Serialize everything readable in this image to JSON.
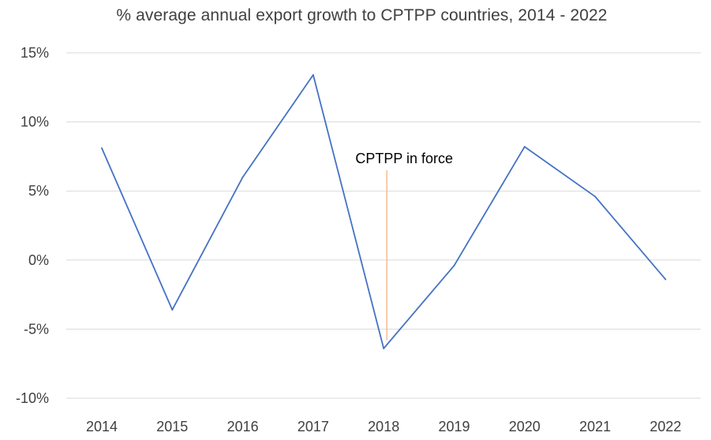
{
  "chart_data": {
    "type": "line",
    "title": "% average annual export growth to CPTPP countries, 2014 - 2022",
    "xlabel": "",
    "ylabel": "",
    "categories": [
      "2014",
      "2015",
      "2016",
      "2017",
      "2018",
      "2019",
      "2020",
      "2021",
      "2022"
    ],
    "series": [
      {
        "name": "Export growth",
        "values": [
          8.1,
          -3.6,
          6.0,
          13.4,
          -6.4,
          -0.4,
          8.2,
          4.6,
          -1.4
        ],
        "color": "#4472c4"
      }
    ],
    "ylim": [
      -10,
      15
    ],
    "yticks": [
      15,
      10,
      5,
      0,
      -5,
      -10
    ],
    "ytick_labels": [
      "15%",
      "10%",
      "5%",
      "0%",
      "-5%",
      "-10%"
    ],
    "grid": true,
    "gridline_color": "#d9d9d9",
    "annotation": {
      "text": "CPTPP in force",
      "at_category": "2018",
      "from_value": -5.8,
      "to_value": 6.5,
      "color": "#f4b183"
    }
  }
}
